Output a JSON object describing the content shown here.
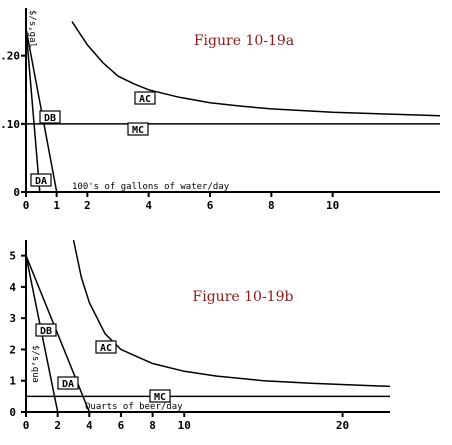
{
  "chart_data": [
    {
      "type": "line",
      "title": "Figure 10-19a",
      "xlabel": "100's of gallons of water/day",
      "ylabel": "$/s,gal",
      "xlim": [
        0,
        13.5
      ],
      "ylim": [
        0,
        0.27
      ],
      "x_ticks": [
        "0",
        "1",
        "2",
        "4",
        "6",
        "8",
        "10"
      ],
      "x_tick_values": [
        0,
        1,
        2,
        4,
        6,
        8,
        10
      ],
      "y_ticks": [
        "0",
        ".10",
        ".20"
      ],
      "y_tick_values": [
        0,
        0.1,
        0.2
      ],
      "series": [
        {
          "name": "DA",
          "points": [
            [
              0,
              0.24
            ],
            [
              0.45,
              0
            ]
          ]
        },
        {
          "name": "DB",
          "points": [
            [
              0,
              0.24
            ],
            [
              1.0,
              0
            ]
          ]
        },
        {
          "name": "MC",
          "points": [
            [
              0,
              0.1
            ],
            [
              13.5,
              0.1
            ]
          ]
        },
        {
          "name": "AC",
          "points": [
            [
              1.5,
              0.25
            ],
            [
              2,
              0.216
            ],
            [
              2.5,
              0.19
            ],
            [
              3,
              0.17
            ],
            [
              3.5,
              0.159
            ],
            [
              4,
              0.15
            ],
            [
              5,
              0.139
            ],
            [
              6,
              0.131
            ],
            [
              7,
              0.126
            ],
            [
              8,
              0.122
            ],
            [
              10,
              0.117
            ],
            [
              12,
              0.114
            ],
            [
              13.5,
              0.112
            ]
          ]
        }
      ]
    },
    {
      "type": "line",
      "title": "Figure 10-19b",
      "xlabel": "Quarts of beer/day",
      "ylabel": "$/s,qua",
      "xlim": [
        0,
        23
      ],
      "ylim": [
        0,
        5.5
      ],
      "x_ticks": [
        "0",
        "2",
        "4",
        "6",
        "8",
        "10",
        "20"
      ],
      "x_tick_values": [
        0,
        2,
        4,
        6,
        8,
        10,
        20
      ],
      "y_ticks": [
        "0",
        "1",
        "2",
        "3",
        "4",
        "5"
      ],
      "y_tick_values": [
        0,
        1,
        2,
        3,
        4,
        5
      ],
      "series": [
        {
          "name": "DB",
          "points": [
            [
              0,
              5
            ],
            [
              2,
              0
            ]
          ]
        },
        {
          "name": "DA",
          "points": [
            [
              0,
              5
            ],
            [
              4,
              0
            ]
          ]
        },
        {
          "name": "MC",
          "points": [
            [
              0,
              0.5
            ],
            [
              23,
              0.5
            ]
          ]
        },
        {
          "name": "AC",
          "points": [
            [
              3,
              5.5
            ],
            [
              3.5,
              4.3
            ],
            [
              4,
              3.5
            ],
            [
              5,
              2.5
            ],
            [
              6,
              2.0
            ],
            [
              8,
              1.55
            ],
            [
              10,
              1.3
            ],
            [
              12,
              1.15
            ],
            [
              15,
              1.0
            ],
            [
              18,
              0.92
            ],
            [
              23,
              0.82
            ]
          ]
        }
      ]
    }
  ]
}
